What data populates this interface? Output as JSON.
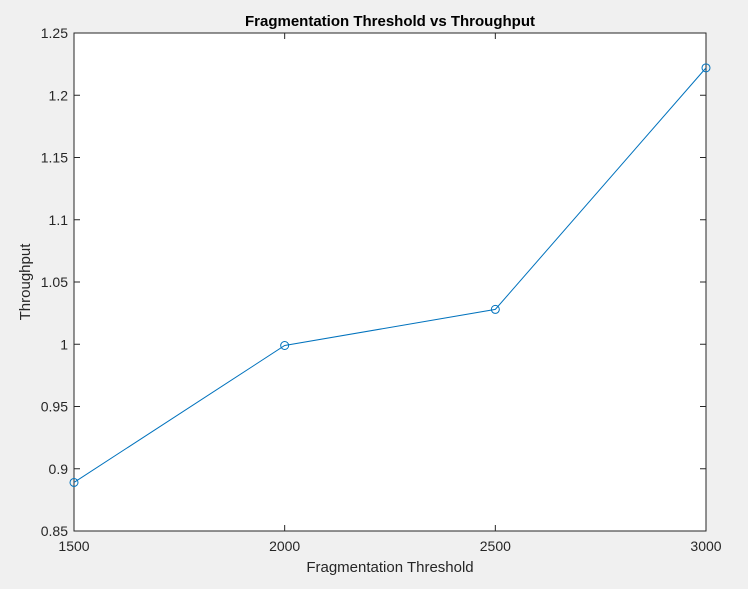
{
  "chart_data": {
    "type": "line",
    "title": "Fragmentation Threshold vs Throughput",
    "xlabel": "Fragmentation Threshold",
    "ylabel": "Throughput",
    "x": [
      1500,
      2000,
      2500,
      3000
    ],
    "series": [
      {
        "values": [
          0.889,
          0.999,
          1.028,
          1.222
        ]
      }
    ],
    "xlim": [
      1500,
      3000
    ],
    "ylim": [
      0.85,
      1.25
    ],
    "xticks": [
      "1500",
      "2000",
      "2500",
      "3000"
    ],
    "yticks": [
      "0.85",
      "0.9",
      "0.95",
      "1",
      "1.05",
      "1.1",
      "1.15",
      "1.2",
      "1.25"
    ],
    "marker": "circle",
    "grid": false,
    "colors": {
      "line": "#0072bd",
      "axes": "#262626",
      "plot_background": "#ffffff",
      "figure_background": "#f0f0f0"
    }
  }
}
